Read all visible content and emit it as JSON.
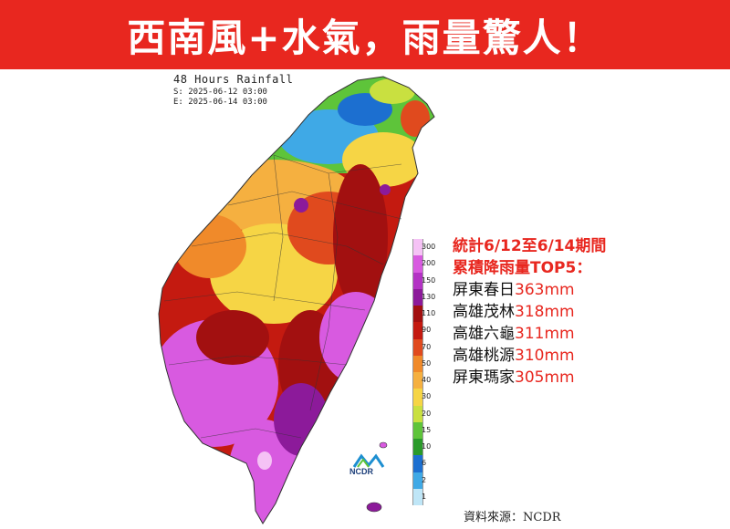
{
  "banner": {
    "title": "西南風+水氣，雨量驚人！",
    "color": "#e8271f"
  },
  "map": {
    "title": "48 Hours Rainfall",
    "start": "S: 2025-06-12 03:00",
    "end": "E: 2025-06-14 03:00"
  },
  "legend": {
    "levels": [
      {
        "label": "300",
        "color": "#f5c2f5"
      },
      {
        "label": "200",
        "color": "#d85ae0"
      },
      {
        "label": "150",
        "color": "#b332c4"
      },
      {
        "label": "130",
        "color": "#8c1a9a"
      },
      {
        "label": "110",
        "color": "#a21010"
      },
      {
        "label": "90",
        "color": "#c41a10"
      },
      {
        "label": "70",
        "color": "#e04a1e"
      },
      {
        "label": "50",
        "color": "#f08a2a"
      },
      {
        "label": "40",
        "color": "#f5b040"
      },
      {
        "label": "30",
        "color": "#f6d545"
      },
      {
        "label": "20",
        "color": "#c9e040"
      },
      {
        "label": "15",
        "color": "#5ec43a"
      },
      {
        "label": "10",
        "color": "#2a9a2a"
      },
      {
        "label": "6",
        "color": "#1c6fd0"
      },
      {
        "label": "2",
        "color": "#3fa9e6"
      },
      {
        "label": "1",
        "color": "#bfe6f7"
      }
    ]
  },
  "stats": {
    "heading1": "統計6/12至6/14期間",
    "heading2": "累積降雨量TOP5：",
    "items": [
      {
        "place": "屏東春日",
        "value": "363mm"
      },
      {
        "place": "高雄茂林",
        "value": "318mm"
      },
      {
        "place": "高雄六龜",
        "value": "311mm"
      },
      {
        "place": "高雄桃源",
        "value": "310mm"
      },
      {
        "place": "屏東瑪家",
        "value": "305mm"
      }
    ]
  },
  "logo": {
    "text": "NCDR"
  },
  "source": "資料來源：NCDR"
}
